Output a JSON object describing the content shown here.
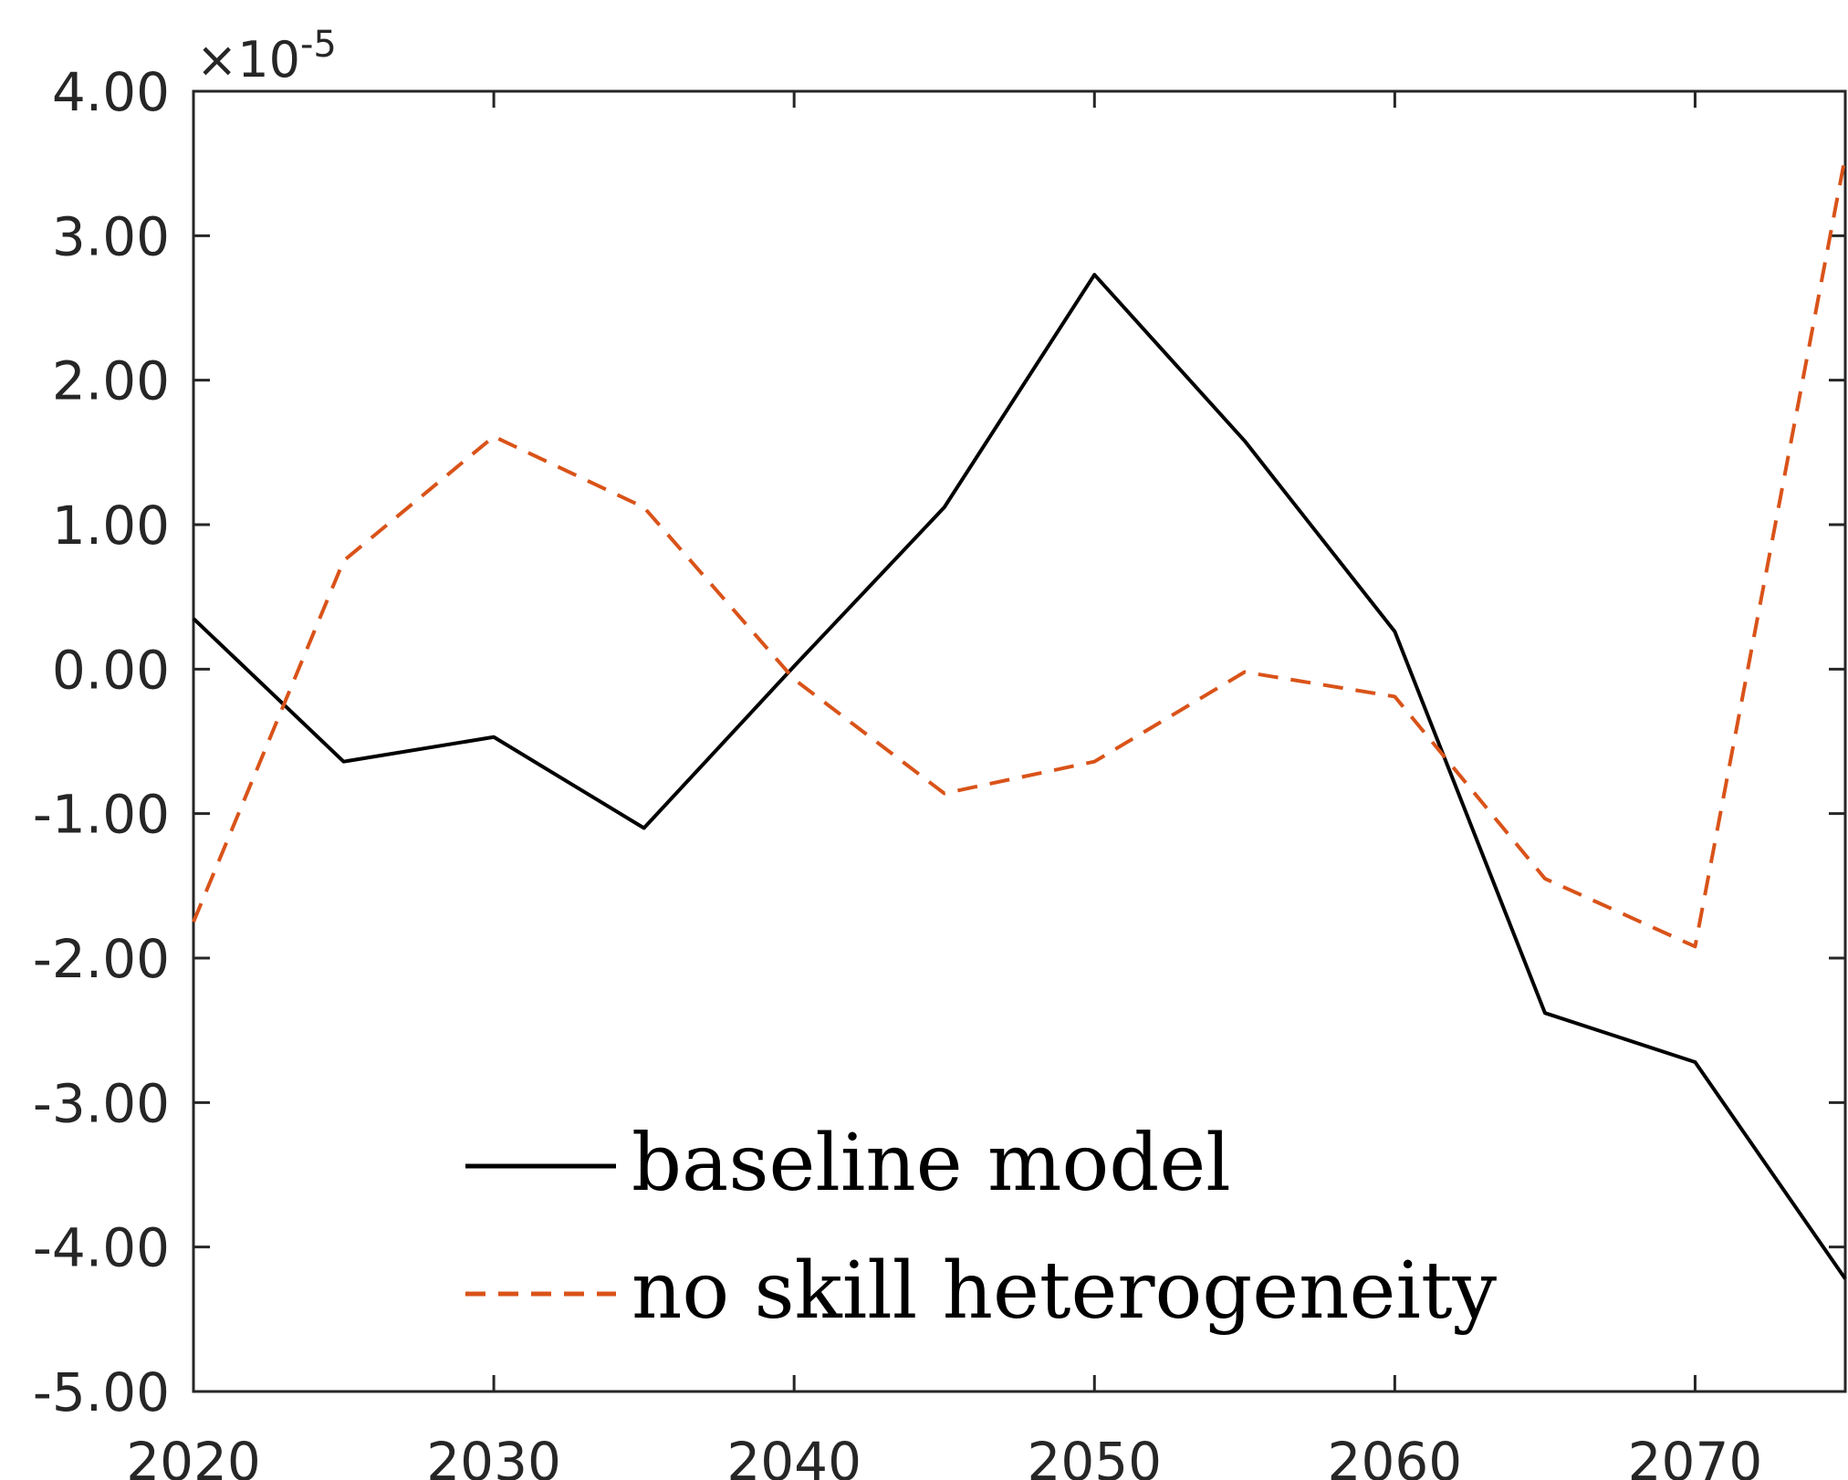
{
  "chart_data": {
    "type": "line",
    "x": [
      2020,
      2025,
      2030,
      2035,
      2040,
      2045,
      2050,
      2055,
      2060,
      2065,
      2070,
      2075
    ],
    "series": [
      {
        "name": "baseline model",
        "color": "#000000",
        "style": "solid",
        "values": [
          0.35,
          -0.64,
          -0.47,
          -1.1,
          0.02,
          1.12,
          2.73,
          1.58,
          0.26,
          -2.38,
          -2.72,
          -4.22
        ]
      },
      {
        "name": "no skill heterogeneity",
        "color": "#d95319",
        "style": "dashed",
        "values": [
          -1.75,
          0.75,
          1.61,
          1.12,
          -0.07,
          -0.86,
          -0.64,
          -0.02,
          -0.19,
          -1.45,
          -1.92,
          3.55
        ]
      }
    ],
    "xlim": [
      2020,
      2075
    ],
    "ylim": [
      -5,
      4
    ],
    "xticks": [
      "2020",
      "2030",
      "2040",
      "2050",
      "2060",
      "2070"
    ],
    "yticks": [
      "4.00",
      "3.00",
      "2.00",
      "1.00",
      "0.00",
      "-1.00",
      "-2.00",
      "-3.00",
      "-4.00",
      "-5.00"
    ],
    "y_exponent_base": "×10",
    "y_exponent_power": "-5",
    "grid": false,
    "legend_position": "bottom-center",
    "title": "",
    "xlabel": "",
    "ylabel": ""
  }
}
